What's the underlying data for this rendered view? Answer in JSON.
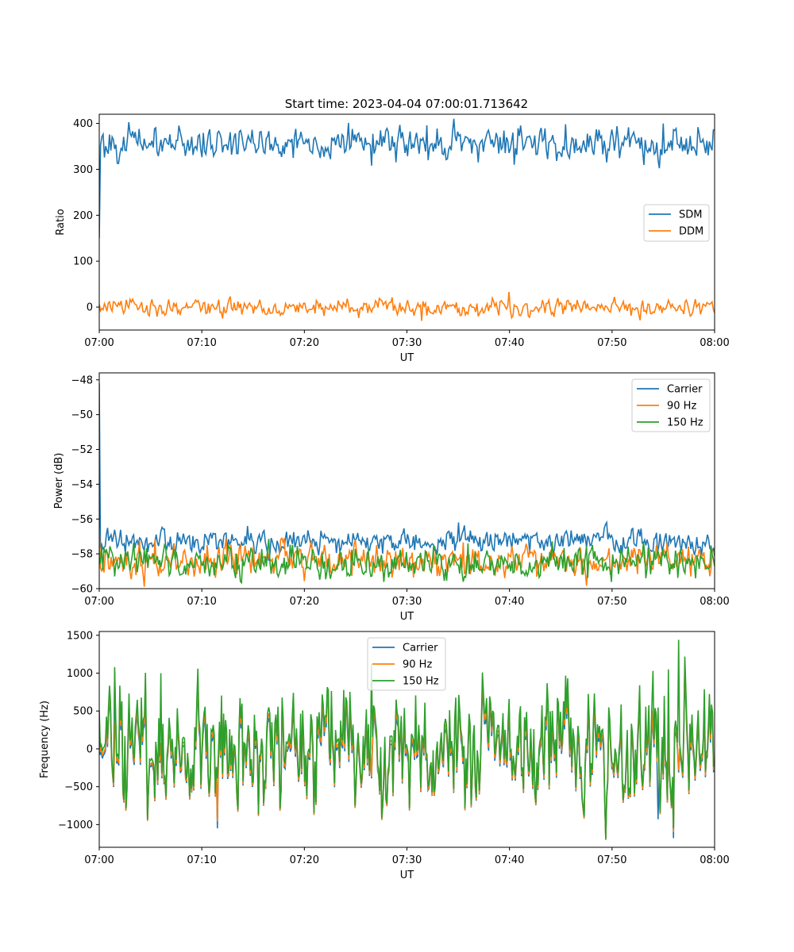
{
  "figure": {
    "title": "Start time: 2023-04-04 07:00:01.713642"
  },
  "colors": {
    "blue": "#1f77b4",
    "orange": "#ff7f0e",
    "green": "#2ca02c"
  },
  "chart_data": [
    {
      "type": "line",
      "title": "Start time: 2023-04-04 07:00:01.713642",
      "xlabel": "UT",
      "ylabel": "Ratio",
      "xlim": [
        0,
        60
      ],
      "ylim": [
        -50,
        420
      ],
      "x_ticks": [
        0,
        10,
        20,
        30,
        40,
        50,
        60
      ],
      "x_tick_labels": [
        "07:00",
        "07:10",
        "07:20",
        "07:30",
        "07:40",
        "07:50",
        "08:00"
      ],
      "y_ticks": [
        0,
        100,
        200,
        300,
        400
      ],
      "y_tick_labels": [
        "0",
        "100",
        "200",
        "300",
        "400"
      ],
      "legend": "center-right",
      "grid": false,
      "series": [
        {
          "name": "SDM",
          "color": "#1f77b4",
          "start": 150,
          "mean": 358,
          "amplitude": 17,
          "peaks": [
            [
              26.5,
              308
            ],
            [
              40.5,
              310
            ],
            [
              32,
              396
            ],
            [
              45.5,
              398
            ],
            [
              55,
              400
            ]
          ]
        },
        {
          "name": "DDM",
          "color": "#ff7f0e",
          "mean": 0,
          "amplitude": 9,
          "peaks": [
            [
              40,
              33
            ],
            [
              12,
              -25
            ],
            [
              31.5,
              -30
            ]
          ]
        }
      ]
    },
    {
      "type": "line",
      "title": "",
      "xlabel": "UT",
      "ylabel": "Power (dB)",
      "xlim": [
        0,
        60
      ],
      "ylim": [
        -60,
        -47.6
      ],
      "x_ticks": [
        0,
        10,
        20,
        30,
        40,
        50,
        60
      ],
      "x_tick_labels": [
        "07:00",
        "07:10",
        "07:20",
        "07:30",
        "07:40",
        "07:50",
        "08:00"
      ],
      "y_ticks": [
        -60,
        -58,
        -56,
        -54,
        -52,
        -50,
        -48
      ],
      "y_tick_labels": [
        "−60",
        "−58",
        "−56",
        "−54",
        "−52",
        "−50",
        "−48"
      ],
      "legend": "top-right",
      "grid": false,
      "series": [
        {
          "name": "Carrier",
          "color": "#1f77b4",
          "start": -48.2,
          "mean": -57.3,
          "amplitude": 0.35,
          "peaks": [
            [
              14.5,
              -56.4
            ],
            [
              35,
              -56.2
            ],
            [
              49.5,
              -56.2
            ],
            [
              6,
              -56.7
            ],
            [
              42,
              -58.0
            ]
          ]
        },
        {
          "name": "90 Hz",
          "color": "#ff7f0e",
          "start": -56.5,
          "mean": -58.4,
          "amplitude": 0.45,
          "peaks": [
            [
              39.5,
              -59.4
            ],
            [
              10.5,
              -57.5
            ],
            [
              27,
              -57.5
            ]
          ]
        },
        {
          "name": "150 Hz",
          "color": "#2ca02c",
          "start": -58.2,
          "mean": -58.5,
          "amplitude": 0.45,
          "peaks": [
            [
              1.5,
              -59.3
            ],
            [
              26.5,
              -59.3
            ],
            [
              36,
              -57.4
            ]
          ]
        }
      ]
    },
    {
      "type": "line",
      "title": "",
      "xlabel": "UT",
      "ylabel": "Frequency (Hz)",
      "xlim": [
        0,
        60
      ],
      "ylim": [
        -1300,
        1550
      ],
      "x_ticks": [
        0,
        10,
        20,
        30,
        40,
        50,
        60
      ],
      "x_tick_labels": [
        "07:00",
        "07:10",
        "07:20",
        "07:30",
        "07:40",
        "07:50",
        "08:00"
      ],
      "y_ticks": [
        -1000,
        -500,
        0,
        500,
        1000,
        1500
      ],
      "y_tick_labels": [
        "−1000",
        "−500",
        "0",
        "500",
        "1000",
        "1500"
      ],
      "legend": "upper-center",
      "grid": false,
      "series": [
        {
          "name": "Carrier",
          "color": "#1f77b4",
          "mean": -60,
          "amplitude": 330,
          "peaks": [
            [
              11.5,
              -1050
            ],
            [
              56,
              -1180
            ],
            [
              54.5,
              -930
            ],
            [
              1.5,
              1020
            ]
          ]
        },
        {
          "name": "90 Hz",
          "color": "#ff7f0e",
          "mean": 0,
          "amplitude": 340,
          "peaks": [
            [
              11.5,
              -960
            ],
            [
              56,
              -1100
            ]
          ]
        },
        {
          "name": "150 Hz",
          "color": "#2ca02c",
          "mean": 50,
          "amplitude": 360,
          "peaks": [
            [
              56.5,
              1440
            ],
            [
              1.5,
              1080
            ],
            [
              6,
              1000
            ],
            [
              26.5,
              1120
            ],
            [
              55.5,
              1050
            ],
            [
              54,
              1030
            ],
            [
              56,
              -1050
            ]
          ]
        }
      ]
    }
  ]
}
